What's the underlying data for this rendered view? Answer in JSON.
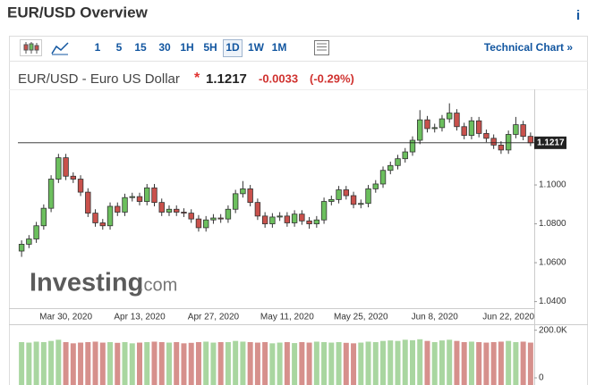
{
  "header": {
    "title": "EUR/USD Overview",
    "info": "i"
  },
  "toolbar": {
    "intervals": [
      "1",
      "5",
      "15",
      "30",
      "1H",
      "5H",
      "1D",
      "1W",
      "1M"
    ],
    "selected": 6,
    "link": "Technical Chart »"
  },
  "instrument": {
    "name": "EUR/USD - Euro US Dollar",
    "marker": "*",
    "price": "1.1217",
    "change": "-0.0033",
    "change_pct": "(-0.29%)"
  },
  "watermark": {
    "brand": "Investing",
    "suffix": ".com"
  },
  "chart_data": {
    "type": "candlestick",
    "up_color": "#6cbf5e",
    "down_color": "#c9514c",
    "up_volume_color": "#a9d6a0",
    "down_volume_color": "#d6908c",
    "categories": [
      null,
      null,
      null,
      null,
      null,
      null,
      "Mar 30, 2020",
      null,
      null,
      null,
      null,
      null,
      null,
      null,
      null,
      null,
      "Apr 13, 2020",
      null,
      null,
      null,
      null,
      null,
      null,
      null,
      null,
      null,
      "Apr 27, 2020",
      null,
      null,
      null,
      null,
      null,
      null,
      null,
      null,
      null,
      "May 11, 2020",
      null,
      null,
      null,
      null,
      null,
      null,
      null,
      null,
      null,
      "May 25, 2020",
      null,
      null,
      null,
      null,
      null,
      null,
      null,
      null,
      null,
      "Jun 8, 2020",
      null,
      null,
      null,
      null,
      null,
      null,
      null,
      null,
      null,
      "Jun 22, 2020",
      null,
      null,
      null
    ],
    "open": [
      1.066,
      1.0695,
      1.0722,
      1.079,
      1.088,
      1.103,
      1.114,
      1.1045,
      1.103,
      1.0963,
      1.0855,
      1.0805,
      1.079,
      1.089,
      1.086,
      1.0935,
      1.094,
      1.0915,
      1.0985,
      1.091,
      1.086,
      1.0875,
      1.086,
      1.0855,
      1.0825,
      1.078,
      1.082,
      1.083,
      1.0825,
      1.0875,
      1.0955,
      1.098,
      1.091,
      1.084,
      1.08,
      1.0835,
      1.084,
      1.0805,
      1.085,
      1.0815,
      1.08,
      1.082,
      1.0915,
      1.0925,
      1.0975,
      1.0945,
      1.09,
      1.0905,
      1.098,
      1.1005,
      1.1075,
      1.11,
      1.1135,
      1.117,
      1.123,
      1.1335,
      1.129,
      1.1295,
      1.134,
      1.137,
      1.13,
      1.1255,
      1.133,
      1.1265,
      1.124,
      1.1205,
      1.118,
      1.126,
      1.131,
      1.125
    ],
    "high": [
      1.0715,
      1.0742,
      1.081,
      1.09,
      1.105,
      1.116,
      1.116,
      1.1065,
      1.105,
      1.0983,
      1.0875,
      1.0825,
      1.091,
      1.091,
      1.0955,
      1.096,
      1.096,
      1.1005,
      1.1005,
      1.093,
      1.0895,
      1.0895,
      1.088,
      1.0875,
      1.0845,
      1.084,
      1.085,
      1.085,
      1.0895,
      1.0975,
      1.102,
      1.1,
      1.093,
      1.086,
      1.0855,
      1.086,
      1.086,
      1.087,
      1.087,
      1.0835,
      1.084,
      1.0935,
      1.0945,
      1.0995,
      1.0995,
      1.0965,
      1.0925,
      1.1,
      1.1025,
      1.1095,
      1.112,
      1.1155,
      1.119,
      1.125,
      1.1385,
      1.1355,
      1.1315,
      1.136,
      1.142,
      1.139,
      1.132,
      1.135,
      1.135,
      1.1285,
      1.126,
      1.1225,
      1.128,
      1.135,
      1.133,
      1.127
    ],
    "low": [
      1.063,
      1.0675,
      1.0702,
      1.077,
      1.086,
      1.101,
      1.1025,
      1.101,
      1.0943,
      1.0835,
      1.0785,
      1.077,
      1.077,
      1.084,
      1.084,
      1.0915,
      1.0895,
      1.0895,
      1.089,
      1.084,
      1.084,
      1.084,
      1.0835,
      1.0805,
      1.076,
      1.076,
      1.08,
      1.0805,
      1.0805,
      1.0855,
      1.0935,
      1.089,
      1.082,
      1.078,
      1.078,
      1.0815,
      1.0785,
      1.0785,
      1.0795,
      1.0775,
      1.078,
      1.08,
      1.0895,
      1.0905,
      1.0925,
      1.088,
      1.088,
      1.0885,
      1.096,
      1.0985,
      1.1055,
      1.108,
      1.1115,
      1.115,
      1.121,
      1.127,
      1.127,
      1.1275,
      1.132,
      1.128,
      1.1235,
      1.1235,
      1.1245,
      1.122,
      1.1185,
      1.116,
      1.116,
      1.124,
      1.123,
      1.12
    ],
    "close": [
      1.0695,
      1.0722,
      1.079,
      1.088,
      1.103,
      1.114,
      1.1045,
      1.103,
      1.0963,
      1.0855,
      1.0805,
      1.079,
      1.089,
      1.086,
      1.0935,
      1.094,
      1.0915,
      1.0985,
      1.091,
      1.086,
      1.0875,
      1.086,
      1.0855,
      1.0825,
      1.078,
      1.082,
      1.083,
      1.0825,
      1.0875,
      1.0955,
      1.098,
      1.091,
      1.084,
      1.08,
      1.0835,
      1.084,
      1.0805,
      1.085,
      1.0815,
      1.08,
      1.082,
      1.0915,
      1.0925,
      1.0975,
      1.0945,
      1.09,
      1.0905,
      1.098,
      1.1005,
      1.1075,
      1.11,
      1.1135,
      1.117,
      1.123,
      1.1335,
      1.129,
      1.1295,
      1.134,
      1.137,
      1.13,
      1.1255,
      1.133,
      1.1265,
      1.124,
      1.1205,
      1.118,
      1.126,
      1.131,
      1.125,
      1.1217
    ],
    "ylim": [
      1.0366,
      1.1492
    ],
    "yticks": [
      {
        "value": 1.04,
        "label": "1.0400"
      },
      {
        "value": 1.06,
        "label": "1.0600"
      },
      {
        "value": 1.08,
        "label": "1.0800"
      },
      {
        "value": 1.1,
        "label": "1.1000"
      }
    ],
    "price_line": {
      "value": 1.1217,
      "label": "1.1217"
    },
    "volume": {
      "values": [
        150000,
        148000,
        152000,
        150000,
        155000,
        160000,
        150000,
        145000,
        148000,
        150000,
        152000,
        148000,
        150000,
        147000,
        150000,
        145000,
        148000,
        150000,
        152000,
        150000,
        148000,
        150000,
        145000,
        147000,
        150000,
        152000,
        148000,
        150000,
        150000,
        155000,
        152000,
        150000,
        148000,
        150000,
        145000,
        148000,
        150000,
        146000,
        150000,
        148000,
        152000,
        150000,
        148000,
        150000,
        147000,
        145000,
        148000,
        152000,
        150000,
        155000,
        157000,
        155000,
        160000,
        158000,
        162000,
        155000,
        150000,
        157000,
        160000,
        155000,
        150000,
        152000,
        150000,
        148000,
        150000,
        152000,
        155000,
        150000,
        152000,
        148000
      ],
      "ylim": [
        0,
        225000
      ],
      "yticks": [
        0,
        {
          "value": 200000,
          "label": "200.0K"
        }
      ]
    }
  }
}
